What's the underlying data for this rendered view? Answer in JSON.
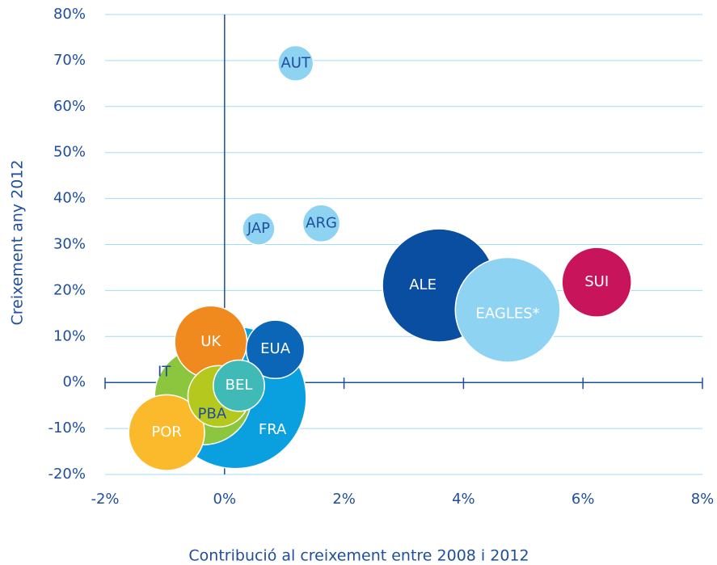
{
  "chart_data": {
    "type": "bubble",
    "x_label": "Contribució al creixement entre 2008 i 2012",
    "y_label": "Creixement any 2012",
    "xlim": [
      -2,
      8
    ],
    "ylim": [
      -20,
      80
    ],
    "xticks": [
      {
        "value": -2,
        "label": "-2%"
      },
      {
        "value": 0,
        "label": "0%"
      },
      {
        "value": 2,
        "label": "2%"
      },
      {
        "value": 4,
        "label": "4%"
      },
      {
        "value": 6,
        "label": "6%"
      },
      {
        "value": 8,
        "label": "8%"
      }
    ],
    "yticks": [
      {
        "value": -20,
        "label": "-20%"
      },
      {
        "value": -10,
        "label": "-10%"
      },
      {
        "value": 0,
        "label": "0%"
      },
      {
        "value": 10,
        "label": "10%"
      },
      {
        "value": 20,
        "label": "20%"
      },
      {
        "value": 30,
        "label": "30%"
      },
      {
        "value": 40,
        "label": "40%"
      },
      {
        "value": 50,
        "label": "50%"
      },
      {
        "value": 60,
        "label": "60%"
      },
      {
        "value": 70,
        "label": "70%"
      },
      {
        "value": 80,
        "label": "80%"
      }
    ],
    "grid": true,
    "labels": [
      "FRA",
      "IT",
      "POR",
      "UK",
      "PBA",
      "EUA",
      "BEL",
      "AUT",
      "JAP",
      "ARG",
      "ALE",
      "EAGLES*",
      "SUI"
    ],
    "x": [
      0.18,
      -0.36,
      -0.97,
      -0.23,
      -0.1,
      0.85,
      0.24,
      1.19,
      0.57,
      1.62,
      3.59,
      4.74,
      6.23
    ],
    "y": [
      -3.3,
      -3.0,
      -10.9,
      8.8,
      -3.0,
      7.2,
      -0.7,
      69.4,
      33.4,
      34.6,
      21.1,
      15.8,
      21.8
    ],
    "sizes": [
      77,
      36,
      22,
      20,
      14.4,
      13,
      10,
      4.8,
      4,
      5.3,
      49,
      42,
      18.5
    ],
    "colors": [
      "#0aa0e0",
      "#8cc63f",
      "#fbb92c",
      "#f08a1e",
      "#b5c81e",
      "#0b66b8",
      "#3fbab7",
      "#8fd3f3",
      "#8fd3f3",
      "#8fd3f3",
      "#0a4ea2",
      "#8fd3f3",
      "#c8145a"
    ],
    "label_colors": [
      "#ffffff",
      "#1f4e9c",
      "#ffffff",
      "#ffffff",
      "#1f4e9c",
      "#ffffff",
      "#ffffff",
      "#1f4e9c",
      "#1f4e9c",
      "#1f4e9c",
      "#ffffff",
      "#ffffff",
      "#ffffff"
    ]
  }
}
